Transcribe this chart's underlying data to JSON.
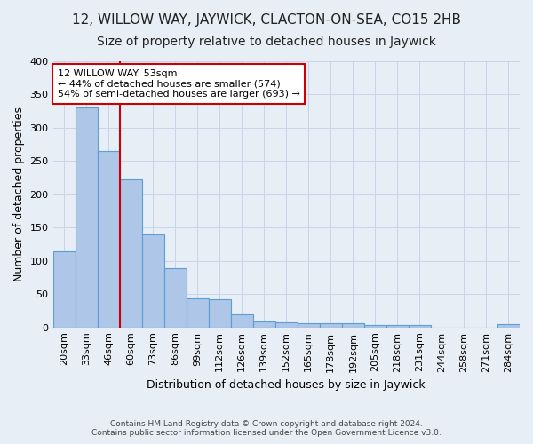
{
  "title": "12, WILLOW WAY, JAYWICK, CLACTON-ON-SEA, CO15 2HB",
  "subtitle": "Size of property relative to detached houses in Jaywick",
  "xlabel": "Distribution of detached houses by size in Jaywick",
  "ylabel": "Number of detached properties",
  "footer1": "Contains HM Land Registry data © Crown copyright and database right 2024.",
  "footer2": "Contains public sector information licensed under the Open Government Licence v3.0.",
  "categories": [
    "20sqm",
    "33sqm",
    "46sqm",
    "60sqm",
    "73sqm",
    "86sqm",
    "99sqm",
    "112sqm",
    "126sqm",
    "139sqm",
    "152sqm",
    "165sqm",
    "178sqm",
    "192sqm",
    "205sqm",
    "218sqm",
    "231sqm",
    "244sqm",
    "258sqm",
    "271sqm",
    "284sqm"
  ],
  "values": [
    115,
    330,
    265,
    222,
    140,
    89,
    44,
    42,
    20,
    9,
    7,
    6,
    6,
    6,
    4,
    4,
    4,
    0,
    0,
    0,
    5
  ],
  "bar_color": "#aec6e8",
  "bar_edge_color": "#5a9fd4",
  "property_line_color": "#cc0000",
  "property_line_x": 2.5,
  "annotation_line1": "12 WILLOW WAY: 53sqm",
  "annotation_line2": "← 44% of detached houses are smaller (574)",
  "annotation_line3": "54% of semi-detached houses are larger (693) →",
  "annotation_box_color": "#ffffff",
  "annotation_box_edge": "#cc0000",
  "ylim": [
    0,
    400
  ],
  "yticks": [
    0,
    50,
    100,
    150,
    200,
    250,
    300,
    350,
    400
  ],
  "grid_color": "#c8d4e8",
  "background_color": "#e8eef5",
  "title_fontsize": 11,
  "subtitle_fontsize": 10,
  "ylabel_fontsize": 9,
  "xlabel_fontsize": 9,
  "tick_fontsize": 8,
  "annotation_fontsize": 8
}
